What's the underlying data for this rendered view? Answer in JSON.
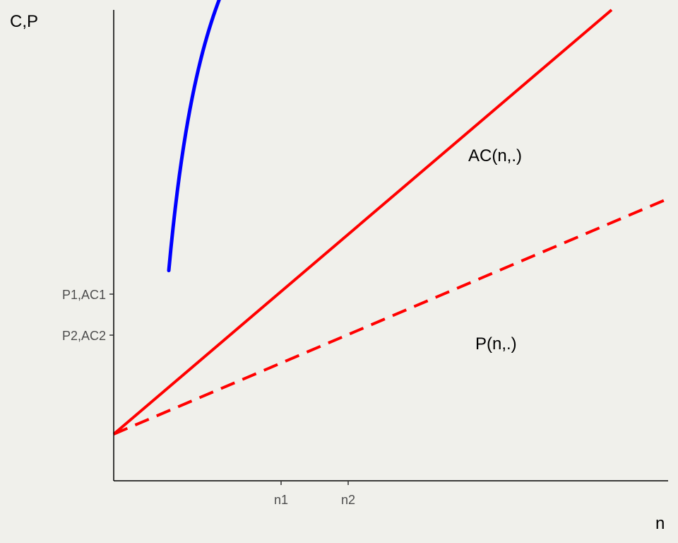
{
  "chart_data": {
    "type": "line",
    "xlabel": "n",
    "ylabel": "C,P",
    "x_ticks": [
      "n1",
      "n2"
    ],
    "y_ticks": [
      "P1,AC1",
      "P2,AC2"
    ],
    "series": [
      {
        "name": "AC(n,.)",
        "style": "solid",
        "color": "#ff0000"
      },
      {
        "name": "",
        "style": "dashed",
        "color": "#ff0000"
      },
      {
        "name": "P(n,.)",
        "style": "solid",
        "color": "#0000ff"
      }
    ],
    "grid": false,
    "legend": "none"
  }
}
